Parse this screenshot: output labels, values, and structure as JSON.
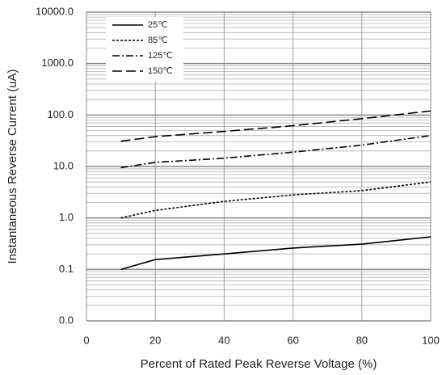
{
  "chart_data": {
    "type": "line",
    "xlabel": "Percent of  Rated Peak Reverse Voltage (%)",
    "ylabel": "Instantaneous Reverse Current (uA)",
    "x": [
      10,
      20,
      40,
      60,
      80,
      100
    ],
    "series": [
      {
        "name": "25℃",
        "color": "#000000",
        "dash": "solid",
        "values": [
          0.1,
          0.155,
          0.2,
          0.26,
          0.31,
          0.43
        ]
      },
      {
        "name": "85℃",
        "color": "#000000",
        "dash": "dotted",
        "values": [
          1.0,
          1.4,
          2.1,
          2.8,
          3.4,
          5.0
        ]
      },
      {
        "name": "125℃",
        "color": "#000000",
        "dash": "dashdot",
        "values": [
          9.5,
          12,
          14.5,
          19,
          26,
          40
        ]
      },
      {
        "name": "150℃",
        "color": "#000000",
        "dash": "dashed",
        "values": [
          31,
          38,
          48,
          62,
          85,
          120
        ]
      }
    ],
    "xlim": [
      0,
      100
    ],
    "xticks": [
      0,
      20,
      40,
      60,
      80,
      100
    ],
    "ylim": [
      0.01,
      10000
    ],
    "log_y": true,
    "yticks": [
      {
        "value": 0.01,
        "label": "0.0"
      },
      {
        "value": 0.1,
        "label": "0.1"
      },
      {
        "value": 1,
        "label": "1.0"
      },
      {
        "value": 10,
        "label": "10.0"
      },
      {
        "value": 100,
        "label": "100.0"
      },
      {
        "value": 1000,
        "label": "1000.0"
      },
      {
        "value": 10000,
        "label": "10000.0"
      }
    ],
    "grid": true,
    "minor_grid": true,
    "legend": "upper left"
  }
}
